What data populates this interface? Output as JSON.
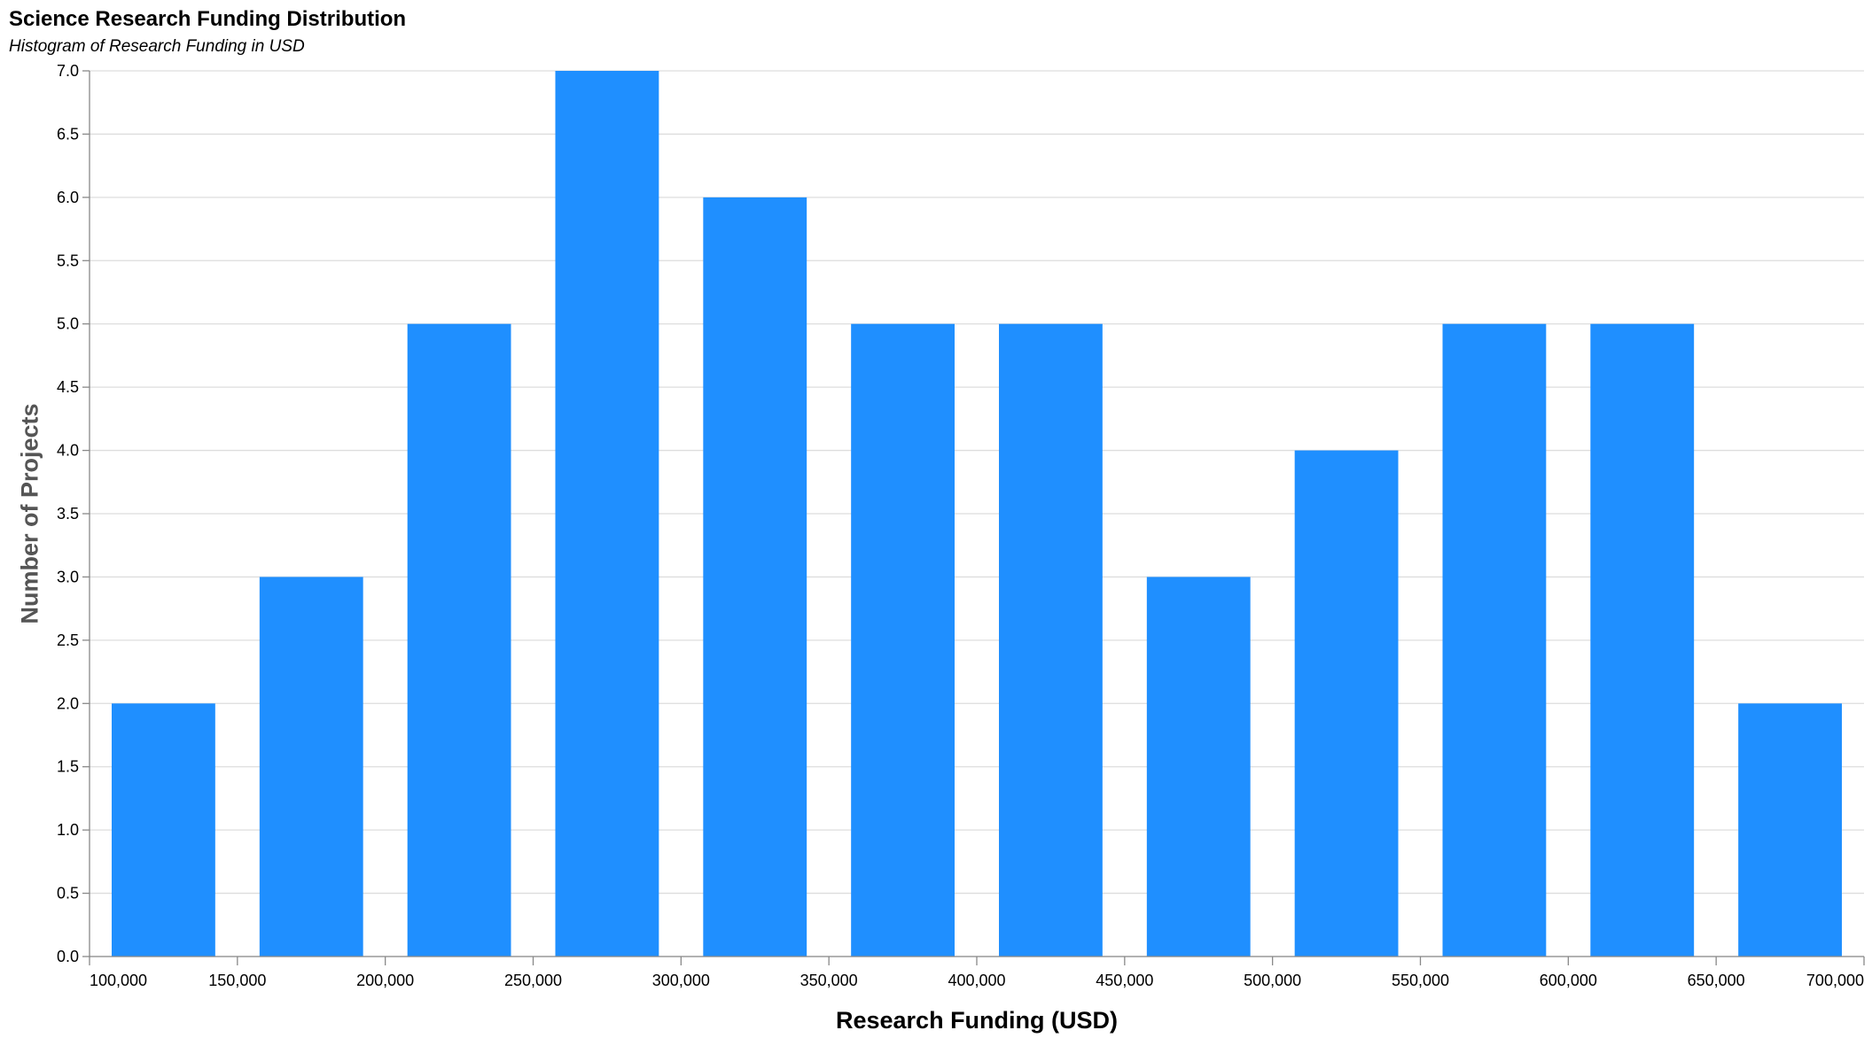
{
  "chart_data": {
    "type": "bar",
    "title": "Science Research Funding Distribution",
    "subtitle": "Histogram of Research Funding in USD",
    "xlabel": "Research Funding (USD)",
    "ylabel": "Number of Projects",
    "xlim": [
      100000,
      700000
    ],
    "ylim": [
      0,
      7
    ],
    "grid": true,
    "bar_color": "#1f8fff",
    "bins": [
      {
        "start": 100000,
        "end": 150000,
        "count": 2
      },
      {
        "start": 150000,
        "end": 200000,
        "count": 3
      },
      {
        "start": 200000,
        "end": 250000,
        "count": 5
      },
      {
        "start": 250000,
        "end": 300000,
        "count": 7
      },
      {
        "start": 300000,
        "end": 350000,
        "count": 6
      },
      {
        "start": 350000,
        "end": 400000,
        "count": 5
      },
      {
        "start": 400000,
        "end": 450000,
        "count": 5
      },
      {
        "start": 450000,
        "end": 500000,
        "count": 3
      },
      {
        "start": 500000,
        "end": 550000,
        "count": 4
      },
      {
        "start": 550000,
        "end": 600000,
        "count": 5
      },
      {
        "start": 600000,
        "end": 650000,
        "count": 5
      },
      {
        "start": 650000,
        "end": 700000,
        "count": 2
      }
    ],
    "x_ticks": [
      {
        "value": 100000,
        "label": "100,000"
      },
      {
        "value": 150000,
        "label": "150,000"
      },
      {
        "value": 200000,
        "label": "200,000"
      },
      {
        "value": 250000,
        "label": "250,000"
      },
      {
        "value": 300000,
        "label": "300,000"
      },
      {
        "value": 350000,
        "label": "350,000"
      },
      {
        "value": 400000,
        "label": "400,000"
      },
      {
        "value": 450000,
        "label": "450,000"
      },
      {
        "value": 500000,
        "label": "500,000"
      },
      {
        "value": 550000,
        "label": "550,000"
      },
      {
        "value": 600000,
        "label": "600,000"
      },
      {
        "value": 650000,
        "label": "650,000"
      },
      {
        "value": 700000,
        "label": "700,000"
      }
    ],
    "y_ticks": [
      {
        "value": 0.0,
        "label": "0.0"
      },
      {
        "value": 0.5,
        "label": "0.5"
      },
      {
        "value": 1.0,
        "label": "1.0"
      },
      {
        "value": 1.5,
        "label": "1.5"
      },
      {
        "value": 2.0,
        "label": "2.0"
      },
      {
        "value": 2.5,
        "label": "2.5"
      },
      {
        "value": 3.0,
        "label": "3.0"
      },
      {
        "value": 3.5,
        "label": "3.5"
      },
      {
        "value": 4.0,
        "label": "4.0"
      },
      {
        "value": 4.5,
        "label": "4.5"
      },
      {
        "value": 5.0,
        "label": "5.0"
      },
      {
        "value": 5.5,
        "label": "5.5"
      },
      {
        "value": 6.0,
        "label": "6.0"
      },
      {
        "value": 6.5,
        "label": "6.5"
      },
      {
        "value": 7.0,
        "label": "7.0"
      }
    ]
  }
}
